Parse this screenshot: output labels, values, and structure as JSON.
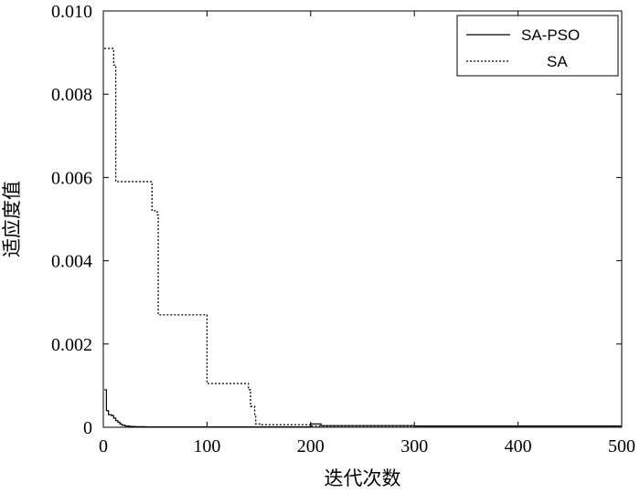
{
  "chart_data": {
    "type": "line",
    "xlabel": "迭代次数",
    "ylabel": "适应度值",
    "xlim": [
      0,
      500
    ],
    "ylim": [
      0,
      0.01
    ],
    "x_ticks": [
      0,
      100,
      200,
      300,
      400,
      500
    ],
    "x_tick_labels": [
      "0",
      "100",
      "200",
      "300",
      "400",
      "500"
    ],
    "y_ticks": [
      0,
      0.002,
      0.004,
      0.006,
      0.008,
      0.01
    ],
    "y_tick_labels": [
      "0",
      "0.002",
      "0.004",
      "0.006",
      "0.008",
      "0.010"
    ],
    "grid": false,
    "legend_position": "top-right",
    "series": [
      {
        "name": "SA-PSO",
        "line_style": "solid",
        "color": "#000000",
        "x": [
          1,
          2,
          3,
          3,
          5,
          5,
          8,
          8,
          10,
          10,
          12,
          12,
          14,
          14,
          16,
          16,
          18,
          18,
          21,
          21,
          25,
          25,
          30,
          30,
          40,
          40,
          60,
          60,
          100,
          100,
          150,
          150,
          200,
          200,
          210,
          210,
          300,
          300,
          400,
          400,
          500
        ],
        "y": [
          0.0009,
          0.0009,
          0.0009,
          0.0004,
          0.0004,
          0.0003,
          0.0003,
          0.00028,
          0.00028,
          0.00022,
          0.00022,
          0.00016,
          0.00016,
          0.00012,
          0.00012,
          8e-05,
          8e-05,
          5e-05,
          5e-05,
          3e-05,
          3e-05,
          2e-05,
          2e-05,
          1.5e-05,
          1.5e-05,
          1e-05,
          1e-05,
          1e-05,
          1e-05,
          1e-05,
          1e-05,
          1e-05,
          1e-05,
          8e-05,
          8e-05,
          4e-05,
          4e-05,
          3e-05,
          3e-05,
          3e-05,
          3e-05
        ]
      },
      {
        "name": "SA",
        "line_style": "dotted",
        "color": "#000000",
        "x": [
          1,
          10,
          10,
          12,
          12,
          47,
          47,
          52,
          52,
          53,
          53,
          100,
          100,
          140,
          140,
          142,
          142,
          146,
          146,
          147,
          147,
          153,
          153,
          200,
          200,
          500
        ],
        "y": [
          0.0091,
          0.0091,
          0.0087,
          0.0087,
          0.0059,
          0.0059,
          0.0052,
          0.0052,
          0.0051,
          0.0051,
          0.0027,
          0.0027,
          0.00105,
          0.00105,
          0.0009,
          0.0009,
          0.0005,
          0.0005,
          0.00028,
          0.00028,
          8e-05,
          8e-05,
          6e-05,
          6e-05,
          3e-05,
          3e-05
        ]
      }
    ]
  }
}
